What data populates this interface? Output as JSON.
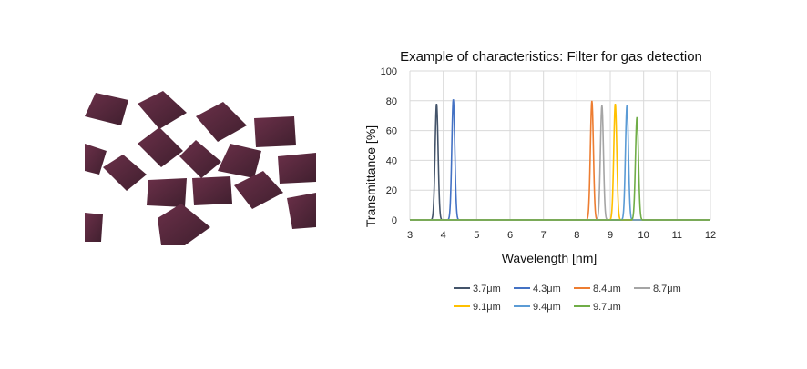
{
  "chart_data": {
    "type": "line",
    "title": "Example of characteristics: Filter for gas detection",
    "xlabel": "Wavelength [nm]",
    "ylabel": "Transmittance [%]",
    "xlim": [
      3,
      12
    ],
    "ylim": [
      0,
      100
    ],
    "xticks": [
      "3",
      "4",
      "5",
      "6",
      "7",
      "8",
      "9",
      "10",
      "11",
      "12"
    ],
    "yticks": [
      "0",
      "20",
      "40",
      "60",
      "80",
      "100"
    ],
    "grid": true,
    "legend_position": "bottom",
    "series": [
      {
        "name": "3.7μm",
        "color": "#44546A",
        "center": 3.8,
        "peak": 78
      },
      {
        "name": "4.3μm",
        "color": "#4472C4",
        "center": 4.3,
        "peak": 81
      },
      {
        "name": "8.4μm",
        "color": "#ED7D31",
        "center": 8.45,
        "peak": 80
      },
      {
        "name": "8.7μm",
        "color": "#A5A5A5",
        "center": 8.75,
        "peak": 77
      },
      {
        "name": "9.1μm",
        "color": "#FFC000",
        "center": 9.15,
        "peak": 78
      },
      {
        "name": "9.4μm",
        "color": "#5B9BD5",
        "center": 9.5,
        "peak": 77
      },
      {
        "name": "9.7μm",
        "color": "#70AD47",
        "center": 9.8,
        "peak": 69
      }
    ]
  },
  "photo": {
    "description_icon": "filter-chips-photo",
    "chip_color": "#5a2a3c"
  }
}
